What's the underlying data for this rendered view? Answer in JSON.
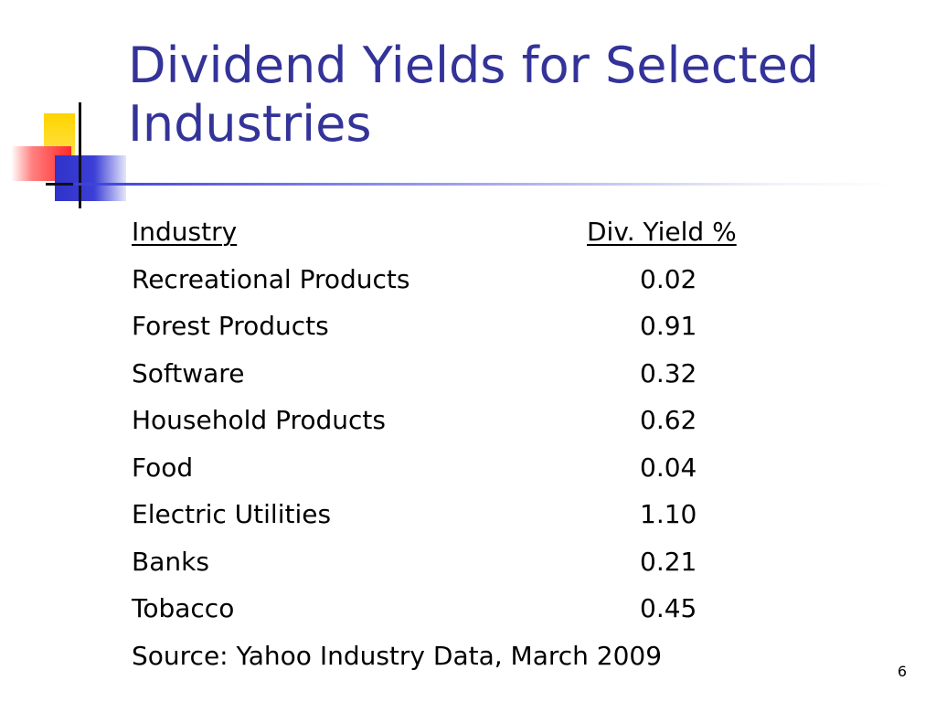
{
  "slide": {
    "title": "Dividend Yields for Selected Industries",
    "page_number": "6"
  },
  "table": {
    "headers": {
      "industry": "Industry",
      "yield": "Div. Yield %"
    },
    "rows": [
      {
        "industry": "Recreational Products",
        "yield": "0.02"
      },
      {
        "industry": "Forest Products",
        "yield": "0.91"
      },
      {
        "industry": "Software",
        "yield": "0.32"
      },
      {
        "industry": "Household Products",
        "yield": "0.62"
      },
      {
        "industry": "Food",
        "yield": "0.04"
      },
      {
        "industry": "Electric Utilities",
        "yield": "1.10"
      },
      {
        "industry": "Banks",
        "yield": "0.21"
      },
      {
        "industry": "Tobacco",
        "yield": "0.45"
      }
    ],
    "source": "Source: Yahoo Industry Data, March 2009"
  },
  "colors": {
    "title": "#333399",
    "text": "#000000",
    "accent_yellow": "#ffd400",
    "accent_red": "#ff2a2a",
    "accent_blue": "#3b3fd6"
  }
}
